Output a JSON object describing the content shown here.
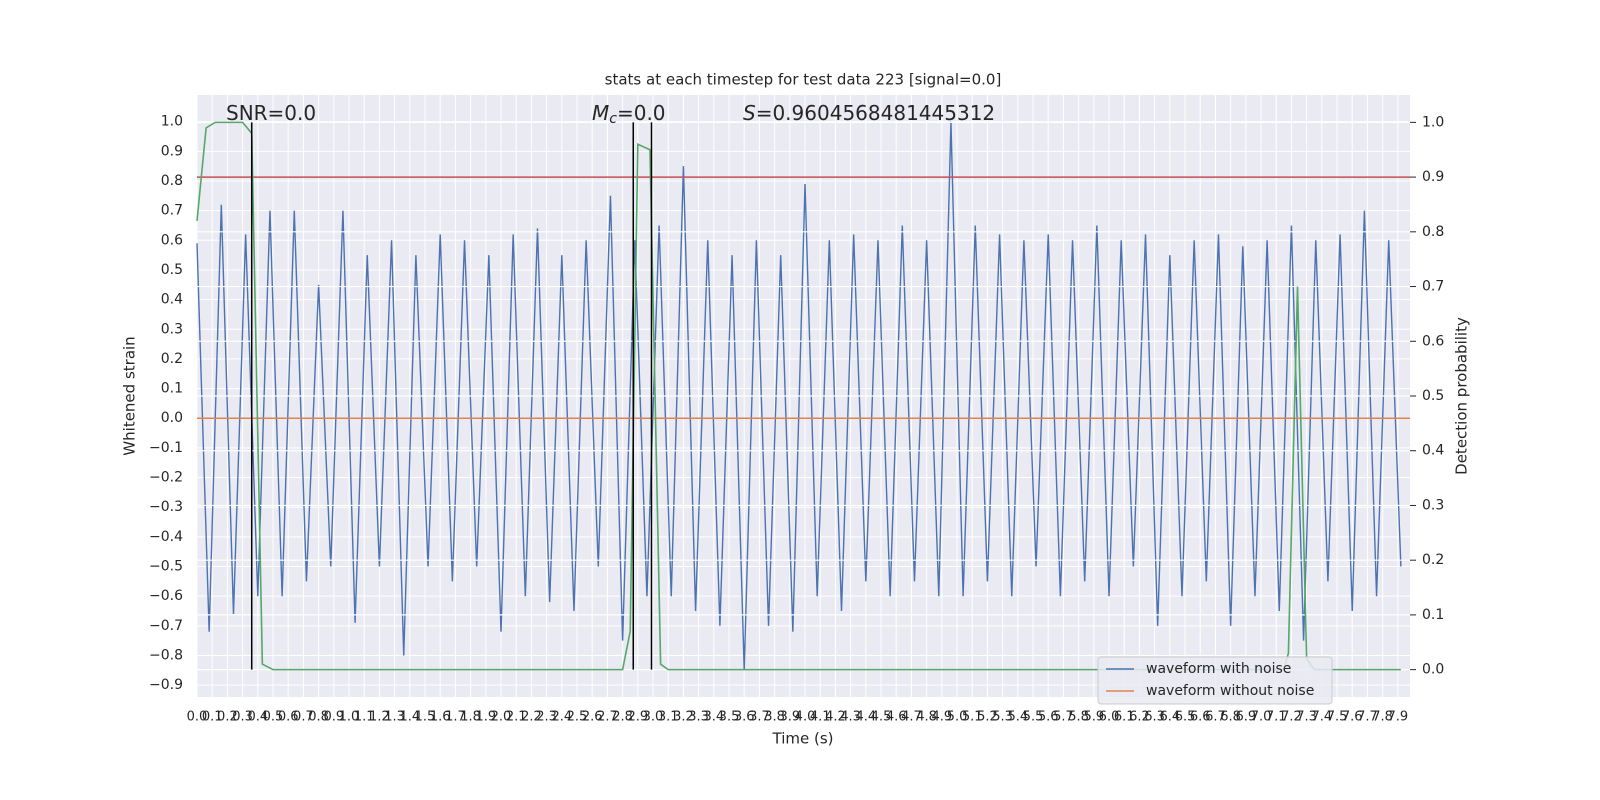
{
  "chart_data": {
    "type": "line",
    "title": "stats at each timestep for test data 223 [signal=0.0]",
    "x_label": "Time (s)",
    "y_label": "Whitened strain",
    "y2_label": "Detection probability",
    "annotations": [
      [
        "SNR=0.0"
      ],
      [
        "M",
        "c",
        "=0.0"
      ],
      [
        "S",
        "=0.9604568481445312"
      ]
    ],
    "xlim": [
      0,
      7.98
    ],
    "ylim": [
      -0.94,
      1.09
    ],
    "y2lim": [
      -0.05,
      1.05
    ],
    "grid": true,
    "legend": "lower right",
    "xticks": [
      {
        "value": 0,
        "label": "0.0"
      },
      0.1,
      0.2,
      0.3,
      0.4,
      0.5,
      0.6,
      0.7,
      0.8,
      0.9,
      {
        "value": 1,
        "label": "1.0"
      },
      1.1,
      1.2,
      1.3,
      1.4,
      1.5,
      1.6,
      1.7,
      1.8,
      1.9,
      {
        "value": 2,
        "label": "2.0"
      },
      2.1,
      2.2,
      2.3,
      2.4,
      2.5,
      2.6,
      2.7,
      2.8,
      2.9,
      {
        "value": 3,
        "label": "3.0"
      },
      3.1,
      3.2,
      3.3,
      3.4,
      3.5,
      3.6,
      3.7,
      3.8,
      3.9,
      {
        "value": 4,
        "label": "4.0"
      },
      4.1,
      4.2,
      4.3,
      4.4,
      4.5,
      4.6,
      4.7,
      4.8,
      4.9,
      {
        "value": 5,
        "label": "5.0"
      },
      5.1,
      5.2,
      5.3,
      5.4,
      5.5,
      5.6,
      5.7,
      5.8,
      5.9,
      {
        "value": 6,
        "label": "6.0"
      },
      6.1,
      6.2,
      6.3,
      6.4,
      6.5,
      6.6,
      6.7,
      6.8,
      6.9,
      {
        "value": 7,
        "label": "7.0"
      },
      7.1,
      7.2,
      7.3,
      7.4,
      7.5,
      7.6,
      7.7,
      7.8,
      7.9
    ],
    "yticks": [
      {
        "value": -0.9,
        "label": "−0.9"
      },
      {
        "value": -0.8,
        "label": "−0.8"
      },
      {
        "value": -0.7,
        "label": "−0.7"
      },
      {
        "value": -0.6,
        "label": "−0.6"
      },
      {
        "value": -0.5,
        "label": "−0.5"
      },
      {
        "value": -0.4,
        "label": "−0.4"
      },
      {
        "value": -0.3,
        "label": "−0.3"
      },
      {
        "value": -0.2,
        "label": "−0.2"
      },
      {
        "value": -0.1,
        "label": "−0.1"
      },
      {
        "value": 0,
        "label": "0.0"
      },
      0.1,
      0.2,
      0.3,
      0.4,
      0.5,
      0.6,
      0.7,
      0.8,
      0.9,
      {
        "value": 1,
        "label": "1.0"
      }
    ],
    "y2ticks": [
      {
        "value": 0,
        "label": "0.0"
      },
      0.1,
      0.2,
      0.3,
      0.4,
      0.5,
      0.6,
      0.7,
      0.8,
      0.9,
      {
        "value": 1,
        "label": "1.0"
      }
    ],
    "threshold": {
      "value": 0.9,
      "axis": "y2",
      "color": "#c44e52"
    },
    "detections": {
      "x": [
        0.36,
        2.87,
        2.99
      ],
      "color": "#000000"
    },
    "series": [
      {
        "name": "waveform with noise",
        "color": "#4c72b0",
        "x": [
          0,
          0.08,
          0.16,
          0.24,
          0.32,
          0.4,
          0.48,
          0.56,
          0.64,
          0.72,
          0.8,
          0.88,
          0.96,
          1.04,
          1.12,
          1.2,
          1.28,
          1.36,
          1.44,
          1.52,
          1.6,
          1.68,
          1.76,
          1.84,
          1.92,
          2,
          2.08,
          2.16,
          2.24,
          2.32,
          2.4,
          2.48,
          2.56,
          2.64,
          2.72,
          2.8,
          2.88,
          2.96,
          3.04,
          3.12,
          3.2,
          3.28,
          3.36,
          3.44,
          3.52,
          3.6,
          3.68,
          3.76,
          3.84,
          3.92,
          4,
          4.08,
          4.16,
          4.24,
          4.32,
          4.4,
          4.48,
          4.56,
          4.64,
          4.72,
          4.8,
          4.88,
          4.96,
          5.04,
          5.12,
          5.2,
          5.28,
          5.36,
          5.44,
          5.52,
          5.6,
          5.68,
          5.76,
          5.84,
          5.92,
          6,
          6.08,
          6.16,
          6.24,
          6.32,
          6.4,
          6.48,
          6.56,
          6.64,
          6.72,
          6.8,
          6.88,
          6.96,
          7.04,
          7.12,
          7.2,
          7.28,
          7.36,
          7.44,
          7.52,
          7.6,
          7.68,
          7.76,
          7.84,
          7.92
        ],
        "values": [
          0.59,
          -0.72,
          0.72,
          -0.66,
          0.62,
          -0.6,
          0.7,
          -0.6,
          0.7,
          -0.55,
          0.45,
          -0.5,
          0.7,
          -0.69,
          0.55,
          -0.5,
          0.6,
          -0.8,
          0.55,
          -0.5,
          0.62,
          -0.55,
          0.6,
          -0.5,
          0.55,
          -0.72,
          0.62,
          -0.6,
          0.64,
          -0.62,
          0.55,
          -0.65,
          0.6,
          -0.5,
          0.75,
          -0.75,
          0.6,
          -0.6,
          0.65,
          -0.6,
          0.85,
          -0.65,
          0.6,
          -0.7,
          0.55,
          -0.85,
          0.6,
          -0.7,
          0.55,
          -0.72,
          0.79,
          -0.6,
          0.6,
          -0.65,
          0.62,
          -0.55,
          0.6,
          -0.6,
          0.65,
          -0.55,
          0.6,
          -0.6,
          1.0,
          -0.6,
          0.65,
          -0.55,
          0.62,
          -0.6,
          0.6,
          -0.5,
          0.62,
          -0.6,
          0.6,
          -0.55,
          0.65,
          -0.6,
          0.6,
          -0.5,
          0.62,
          -0.7,
          0.55,
          -0.6,
          0.6,
          -0.55,
          0.62,
          -0.7,
          0.58,
          -0.6,
          0.6,
          -0.65,
          0.65,
          -0.75,
          0.6,
          -0.55,
          0.62,
          -0.65,
          0.7,
          -0.6,
          0.6,
          -0.5
        ]
      },
      {
        "name": "waveform without noise",
        "color": "#dd8452",
        "x": [
          0,
          7.98
        ],
        "values": [
          0,
          0
        ]
      },
      {
        "color": "#55a868",
        "axis": "y2",
        "x": [
          0,
          0.06,
          0.12,
          0.3,
          0.36,
          0.43,
          0.5,
          2.8,
          2.85,
          2.9,
          2.98,
          3.05,
          3.1,
          7.15,
          7.18,
          7.24,
          7.3,
          7.35,
          7.92
        ],
        "values": [
          0.82,
          0.99,
          1.0,
          1.0,
          0.98,
          0.01,
          0.0,
          0.0,
          0.07,
          0.96,
          0.95,
          0.01,
          0.0,
          0.0,
          0.03,
          0.7,
          0.02,
          0.0,
          0.0
        ]
      }
    ]
  }
}
